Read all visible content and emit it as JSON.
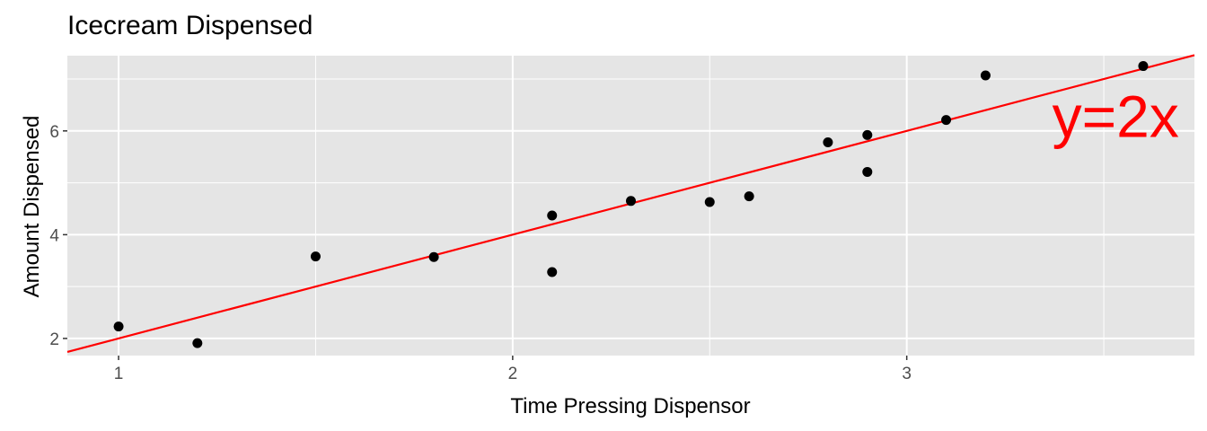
{
  "chart_data": {
    "type": "scatter",
    "title": "Icecream Dispensed",
    "xlabel": "Time Pressing Dispensor",
    "ylabel": "Amount Dispensed",
    "xlim": [
      0.87,
      3.73
    ],
    "ylim": [
      1.67,
      7.45
    ],
    "x_ticks": [
      1,
      2,
      3
    ],
    "y_ticks": [
      2,
      4,
      6
    ],
    "grid": true,
    "points": [
      {
        "x": 1.0,
        "y": 2.23
      },
      {
        "x": 1.2,
        "y": 1.91
      },
      {
        "x": 1.5,
        "y": 3.58
      },
      {
        "x": 1.8,
        "y": 3.57
      },
      {
        "x": 2.1,
        "y": 4.37
      },
      {
        "x": 2.1,
        "y": 3.28
      },
      {
        "x": 2.3,
        "y": 4.65
      },
      {
        "x": 2.5,
        "y": 4.63
      },
      {
        "x": 2.6,
        "y": 4.74
      },
      {
        "x": 2.8,
        "y": 5.78
      },
      {
        "x": 2.9,
        "y": 5.92
      },
      {
        "x": 2.9,
        "y": 5.21
      },
      {
        "x": 3.1,
        "y": 6.21
      },
      {
        "x": 3.2,
        "y": 7.07
      },
      {
        "x": 3.6,
        "y": 7.25
      }
    ],
    "reference_line": {
      "slope": 2,
      "intercept": 0,
      "color": "#ff0000"
    },
    "annotation": {
      "text": "y=2x",
      "x": 3.53,
      "y": 6.3,
      "color": "#ff0000"
    },
    "colors": {
      "panel_background": "#e5e5e5",
      "grid": "#ffffff",
      "points": "#000000"
    }
  }
}
